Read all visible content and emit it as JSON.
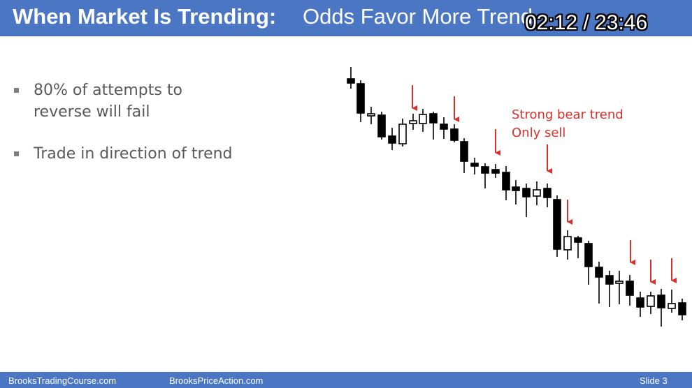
{
  "header": {
    "title_bold": "When Market Is Trending:",
    "title_rest": "Odds Favor More Trend",
    "timer": "02:12 / 23:46"
  },
  "bullets": [
    {
      "line1": "80% of attempts to",
      "line2": "reverse will fail"
    },
    {
      "line1": "Trade in direction of trend"
    }
  ],
  "annotation": {
    "line1": "Strong bear trend",
    "line2": "Only sell",
    "color": "#d9302b"
  },
  "footer": {
    "site1": "BrooksTradingCourse.com",
    "site2": "BrooksPriceAction.com",
    "slide": "Slide  3"
  },
  "colors": {
    "header_bg": "#4a76c4",
    "arrow": "#d9302b",
    "candle": "#000000"
  }
}
